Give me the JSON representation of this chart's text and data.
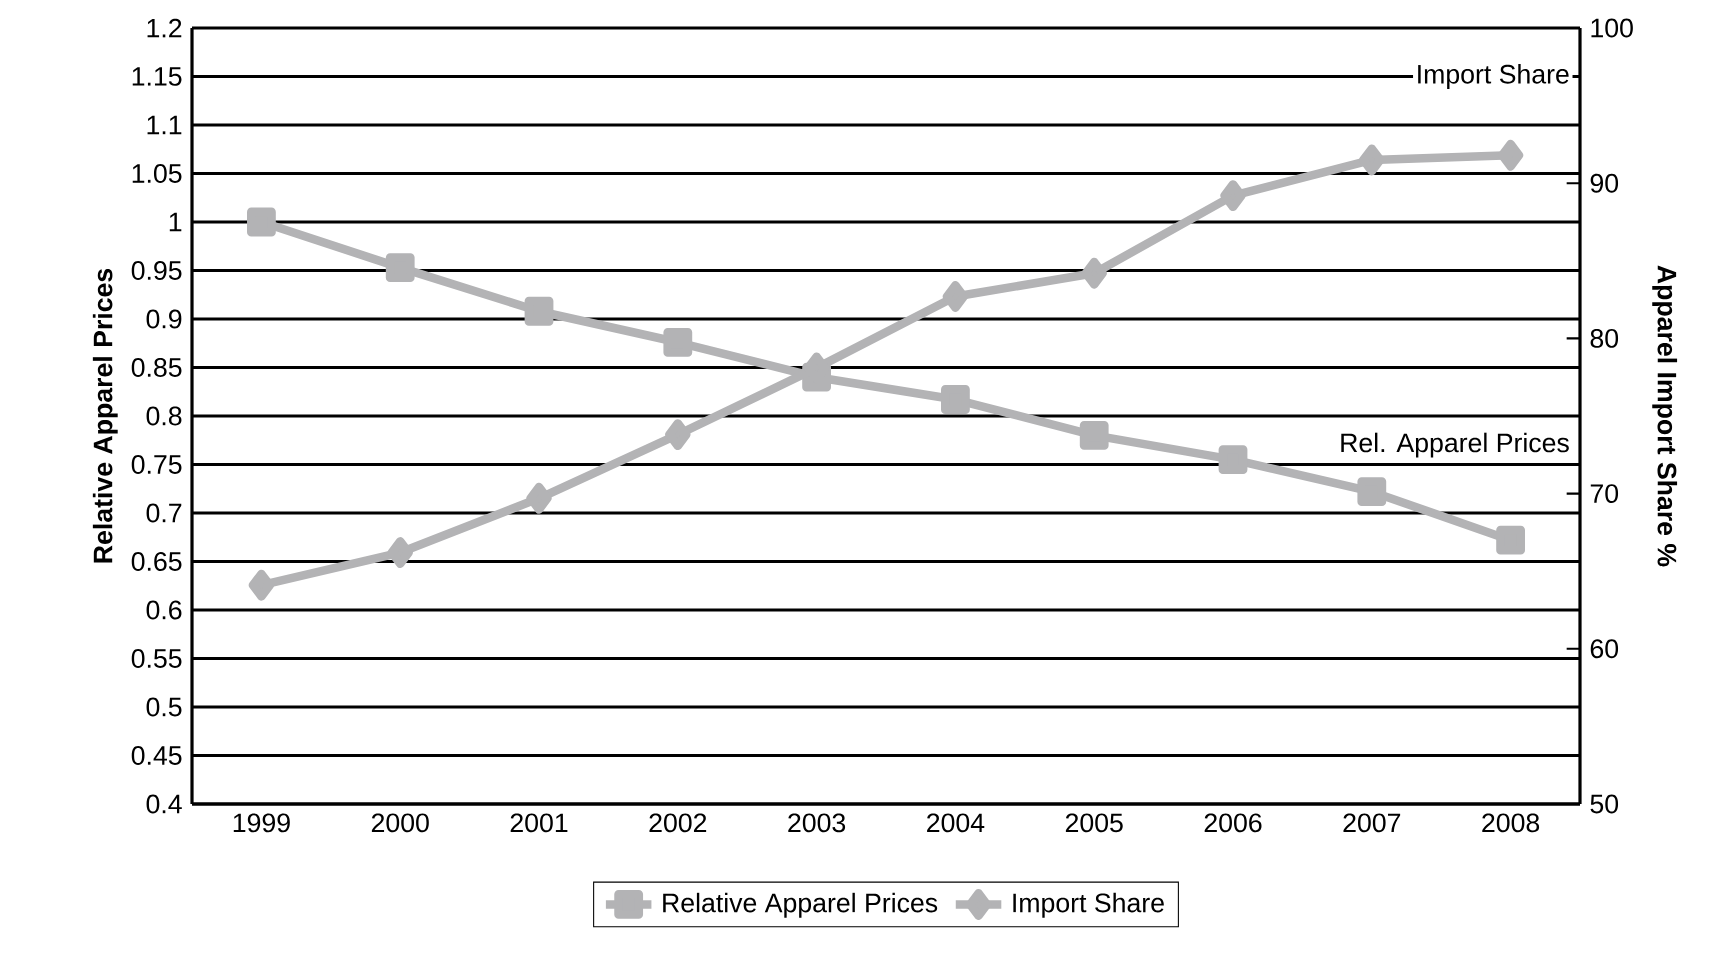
{
  "chart_data": {
    "type": "line",
    "categories": [
      "1999",
      "2000",
      "2001",
      "2002",
      "2003",
      "2004",
      "2005",
      "2006",
      "2007",
      "2008"
    ],
    "series": [
      {
        "name": "Relative Apparel Prices",
        "color": "#b3b3b5",
        "marker": "square",
        "values": [
          1.0,
          0.953,
          0.908,
          0.876,
          0.84,
          0.817,
          0.78,
          0.755,
          0.722,
          0.672
        ]
      },
      {
        "name": "Import Share",
        "color": "#b3b3b5",
        "marker": "diamond",
        "axis": "y2",
        "values": [
          64.1,
          66.2,
          69.7,
          73.8,
          78.1,
          82.7,
          84.2,
          89.2,
          91.5,
          91.8
        ]
      }
    ],
    "ylabel": "Relative Apparel Prices",
    "y2label": "Apparel Import Share %",
    "ylim": [
      0.4,
      1.2
    ],
    "yticks": [
      0.4,
      0.45,
      0.5,
      0.55,
      0.6,
      0.65,
      0.7,
      0.75,
      0.8,
      0.85,
      0.9,
      0.95,
      1,
      1.05,
      1.1,
      1.15,
      1.2
    ],
    "y2lim": [
      50,
      100
    ],
    "y2ticks": [
      50,
      60,
      70,
      80,
      90,
      100
    ],
    "annotations": [
      "Import Share",
      "Rel. Apparel Prices"
    ],
    "grid": "y",
    "legend": "bottom",
    "line_style": "solid"
  }
}
